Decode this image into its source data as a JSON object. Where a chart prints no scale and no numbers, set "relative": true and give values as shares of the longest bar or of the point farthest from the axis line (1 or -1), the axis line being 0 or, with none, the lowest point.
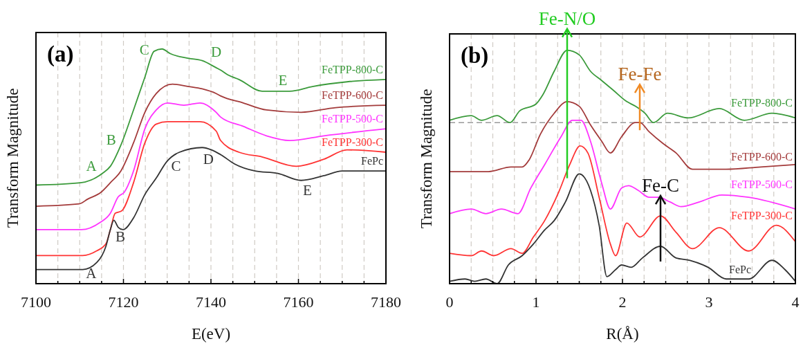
{
  "chart_data": [
    {
      "type": "line",
      "relative": true,
      "xlabel": "E(eV)",
      "ylabel": "Transform Magnitude",
      "grid": "x",
      "xlim": [
        7100,
        7180
      ],
      "xticks": [
        7100,
        {
          "value": 7105,
          "label": null
        },
        {
          "value": 7110,
          "label": null
        },
        {
          "value": 7115,
          "label": null
        },
        7120,
        {
          "value": 7125,
          "label": null
        },
        {
          "value": 7130,
          "label": null
        },
        {
          "value": 7135,
          "label": null
        },
        7140,
        {
          "value": 7145,
          "label": null
        },
        {
          "value": 7150,
          "label": null
        },
        {
          "value": 7155,
          "label": null
        },
        7160,
        {
          "value": 7165,
          "label": null
        },
        {
          "value": 7170,
          "label": null
        },
        {
          "value": 7175,
          "label": null
        },
        7180
      ],
      "series": [
        {
          "name": "FeTPP-800-C",
          "color": "#3a9a3a",
          "x": [
            7100,
            7110.2,
            7115.2,
            7117,
            7119.4,
            7122.3,
            7124.9,
            7127,
            7128.8,
            7130.7,
            7134.9,
            7138,
            7141.2,
            7142.2,
            7143.8,
            7146.4,
            7151.7,
            7158,
            7163.2,
            7171.1,
            7180
          ],
          "values": [
            0.42,
            0.43,
            0.47,
            0.5,
            0.59,
            0.74,
            0.88,
            0.99,
            1,
            0.98,
            0.96,
            0.95,
            0.92,
            0.91,
            0.89,
            0.87,
            0.82,
            0.82,
            0.84,
            0.86,
            0.87
          ]
        },
        {
          "name": "FeTPP-600-C",
          "color": "#a33a3a",
          "x": [
            7100,
            7109.9,
            7111.8,
            7114.9,
            7117,
            7119.4,
            7122.3,
            7124.9,
            7127.5,
            7131.2,
            7134.9,
            7138,
            7141.2,
            7142.2,
            7147.4,
            7152.7,
            7160.6,
            7168.5,
            7180
          ],
          "values": [
            0.33,
            0.34,
            0.36,
            0.39,
            0.43,
            0.48,
            0.6,
            0.73,
            0.81,
            0.85,
            0.84,
            0.83,
            0.81,
            0.8,
            0.77,
            0.74,
            0.73,
            0.75,
            0.76
          ]
        },
        {
          "name": "FeTPP-500-C",
          "color": "#ff33ff",
          "x": [
            7100,
            7110.4,
            7114.6,
            7117,
            7118.8,
            7120.2,
            7122.3,
            7124.9,
            7127.5,
            7130.1,
            7133.8,
            7137.5,
            7141.2,
            7142.2,
            7147.4,
            7152.7,
            7158,
            7165.8,
            7180
          ],
          "values": [
            0.23,
            0.23,
            0.26,
            0.3,
            0.37,
            0.39,
            0.48,
            0.66,
            0.74,
            0.77,
            0.76,
            0.77,
            0.73,
            0.71,
            0.67,
            0.63,
            0.61,
            0.63,
            0.66
          ]
        },
        {
          "name": "FeTPP-300-C",
          "color": "#ff3333",
          "x": [
            7100,
            7110.7,
            7113.9,
            7116,
            7117,
            7118.1,
            7119.6,
            7122.3,
            7124.9,
            7127.5,
            7130.1,
            7133.8,
            7137.5,
            7141.2,
            7142.2,
            7146.4,
            7151.7,
            7159.5,
            7165.8,
            7171.1,
            7180
          ],
          "values": [
            0.12,
            0.12,
            0.14,
            0.17,
            0.23,
            0.3,
            0.31,
            0.43,
            0.6,
            0.68,
            0.69,
            0.69,
            0.69,
            0.65,
            0.61,
            0.56,
            0.54,
            0.5,
            0.53,
            0.57,
            0.56
          ]
        },
        {
          "name": "FePc",
          "color": "#333333",
          "x": [
            7100,
            7110.7,
            7113.9,
            7116,
            7117,
            7117.8,
            7118.8,
            7119.9,
            7122.3,
            7124.9,
            7127.5,
            7129.9,
            7132.8,
            7138,
            7140.1,
            7142.2,
            7145.4,
            7150.1,
            7155.3,
            7160.6,
            7165.8,
            7170,
            7180
          ],
          "values": [
            0.06,
            0.06,
            0.09,
            0.16,
            0.23,
            0.27,
            0.24,
            0.23,
            0.28,
            0.38,
            0.45,
            0.52,
            0.56,
            0.58,
            0.57,
            0.55,
            0.51,
            0.48,
            0.47,
            0.44,
            0.46,
            0.48,
            0.48
          ]
        }
      ],
      "annotations": [
        "(a)",
        {
          "text": "A",
          "x": 7115.2,
          "y": 0.47
        },
        {
          "text": "B",
          "x": 7119.4,
          "y": 0.59
        },
        {
          "text": "C",
          "x": 7127,
          "y": 0.99
        },
        {
          "text": "D",
          "x": 7141.2,
          "y": 0.92
        },
        {
          "text": "E",
          "x": 7158,
          "y": 0.82
        },
        {
          "text": "A",
          "x": 7113.9,
          "y": 0.09
        },
        {
          "text": "B",
          "x": 7118.8,
          "y": 0.24
        },
        {
          "text": "C",
          "x": 7132.8,
          "y": 0.56
        },
        {
          "text": "D",
          "x": 7138,
          "y": 0.58
        },
        {
          "text": "E",
          "x": 7160.6,
          "y": 0.44
        }
      ]
    },
    {
      "type": "line",
      "relative": true,
      "xlabel": "R(Å)",
      "ylabel": "Transform Magnitude",
      "grid": "x",
      "xlim": [
        0,
        4
      ],
      "xticks": [
        0,
        {
          "value": 0.25,
          "label": null
        },
        {
          "value": 0.5,
          "label": null
        },
        {
          "value": 0.75,
          "label": null
        },
        1,
        {
          "value": 1.25,
          "label": null
        },
        {
          "value": 1.5,
          "label": null
        },
        {
          "value": 1.75,
          "label": null
        },
        2,
        {
          "value": 2.25,
          "label": null
        },
        {
          "value": 2.5,
          "label": null
        },
        {
          "value": 2.75,
          "label": null
        },
        3,
        {
          "value": 3.25,
          "label": null
        },
        {
          "value": 3.5,
          "label": null
        },
        {
          "value": 3.75,
          "label": null
        },
        4
      ],
      "series": [
        {
          "name": "FeTPP-800-C",
          "color": "#3a9a3a",
          "x": [
            0,
            0.25,
            0.37,
            0.55,
            0.7,
            0.81,
            1,
            1.08,
            1.21,
            1.36,
            1.5,
            1.63,
            1.76,
            1.89,
            2.05,
            2.15,
            2.26,
            2.36,
            2.52,
            2.76,
            3.12,
            3.41,
            3.73,
            4
          ],
          "values": [
            0.7,
            0.72,
            0.7,
            0.72,
            0.69,
            0.74,
            0.77,
            0.81,
            0.91,
            1,
            0.98,
            0.91,
            0.87,
            0.83,
            0.78,
            0.76,
            0.73,
            0.69,
            0.73,
            0.71,
            0.75,
            0.7,
            0.73,
            0.71
          ]
        },
        {
          "name": "FeTPP-600-C",
          "color": "#a33a3a",
          "x": [
            0,
            0.45,
            0.71,
            0.84,
            0.92,
            1.05,
            1.21,
            1.36,
            1.5,
            1.63,
            1.76,
            1.86,
            1.99,
            2.15,
            2.2,
            2.31,
            2.47,
            2.62,
            2.81,
            3.2,
            3.6,
            4
          ],
          "values": [
            0.48,
            0.48,
            0.5,
            0.5,
            0.53,
            0.64,
            0.73,
            0.78,
            0.76,
            0.68,
            0.61,
            0.56,
            0.63,
            0.69,
            0.69,
            0.65,
            0.6,
            0.56,
            0.49,
            0.49,
            0.5,
            0.51
          ]
        },
        {
          "name": "FeTPP-500-C",
          "color": "#ff33ff",
          "x": [
            0,
            0.25,
            0.42,
            0.6,
            0.79,
            0.94,
            1.1,
            1.29,
            1.42,
            1.52,
            1.63,
            1.76,
            1.86,
            1.99,
            2.07,
            2.18,
            2.31,
            2.42,
            2.55,
            2.68,
            2.89,
            3.15,
            3.46,
            4
          ],
          "values": [
            0.3,
            0.32,
            0.3,
            0.32,
            0.3,
            0.41,
            0.51,
            0.63,
            0.7,
            0.7,
            0.61,
            0.43,
            0.32,
            0.41,
            0.42,
            0.4,
            0.37,
            0.37,
            0.35,
            0.33,
            0.35,
            0.38,
            0.37,
            0.32
          ]
        },
        {
          "name": "FeTPP-300-C",
          "color": "#ff3333",
          "x": [
            0,
            0.25,
            0.37,
            0.51,
            0.71,
            0.84,
            0.97,
            1.1,
            1.26,
            1.39,
            1.51,
            1.6,
            1.73,
            1.86,
            1.92,
            2.05,
            2.2,
            2.44,
            2.62,
            2.81,
            3.12,
            3.46,
            3.78,
            4
          ],
          "values": [
            0.13,
            0.12,
            0.14,
            0.12,
            0.15,
            0.13,
            0.2,
            0.27,
            0.39,
            0.51,
            0.59,
            0.56,
            0.37,
            0.17,
            0.12,
            0.26,
            0.2,
            0.29,
            0.22,
            0.15,
            0.24,
            0.14,
            0.25,
            0.18
          ]
        },
        {
          "name": "FePc",
          "color": "#333333",
          "x": [
            0,
            0.18,
            0.29,
            0.42,
            0.55,
            0.68,
            0.84,
            0.97,
            1.1,
            1.21,
            1.34,
            1.5,
            1.63,
            1.73,
            1.82,
            1.92,
            1.99,
            2.1,
            2.23,
            2.44,
            2.62,
            2.78,
            2.99,
            3.2,
            3.46,
            3.73,
            3.88,
            4
          ],
          "values": [
            0.01,
            0.02,
            0.01,
            0.02,
            0,
            0.08,
            0.12,
            0.17,
            0.23,
            0.27,
            0.35,
            0.47,
            0.4,
            0.25,
            0.03,
            0.06,
            0.08,
            0.07,
            0.11,
            0.16,
            0.11,
            0.1,
            0.07,
            0.02,
            0.02,
            0.1,
            0.06,
            0.01
          ]
        }
      ],
      "ref_lines": [
        {
          "axis": "y",
          "value": 0.69,
          "color": "#999999",
          "line_style": "dashed"
        }
      ],
      "annotations": [
        "(b)",
        {
          "text": "Fe-N/O",
          "x": 1.36,
          "y": 1
        },
        {
          "text": "Fe-Fe",
          "x": 2.2,
          "y": 0.69
        },
        {
          "text": "Fe-C",
          "x": 2.44,
          "y": 0.16
        }
      ]
    }
  ]
}
